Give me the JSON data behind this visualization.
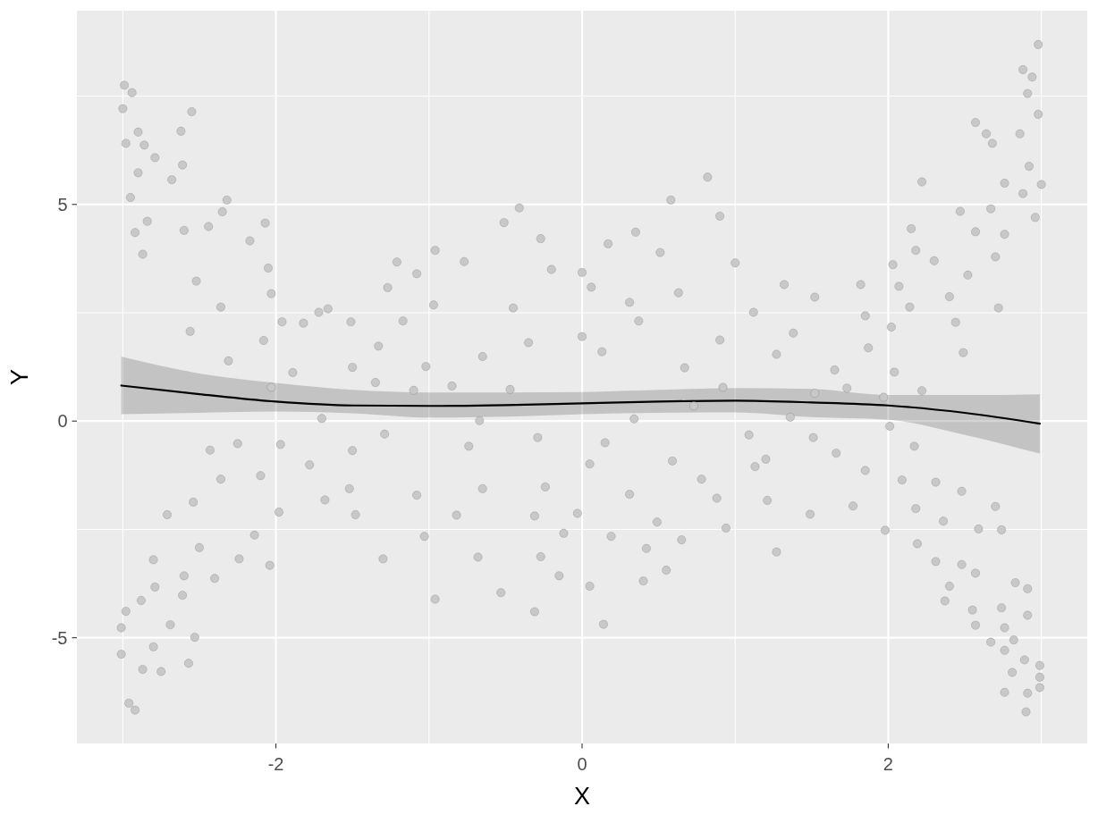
{
  "chart_data": {
    "type": "scatter",
    "xlabel": "X",
    "ylabel": "Y",
    "xlim": [
      -3.3,
      3.3
    ],
    "ylim": [
      -7.44,
      9.47
    ],
    "xticks": [
      {
        "value": -3,
        "label": null
      },
      -2,
      {
        "value": -1,
        "label": null
      },
      0,
      {
        "value": 1,
        "label": null
      },
      2,
      {
        "value": 3,
        "label": null
      }
    ],
    "yticks": [
      -5,
      {
        "value": -2.5,
        "label": null
      },
      0,
      {
        "value": 2.5,
        "label": null
      },
      5,
      {
        "value": 7.5,
        "label": null
      }
    ],
    "grid": true,
    "series": [
      {
        "color": "#c8c8c8",
        "marker": "circle",
        "x": [
          -2.99,
          -2.94,
          -3.0,
          -2.55,
          -2.9,
          -2.62,
          -2.98,
          -2.86,
          -2.79,
          -2.61,
          -2.9,
          -2.68,
          -2.95,
          -2.32,
          -2.84,
          -2.6,
          -2.92,
          -2.87,
          -2.35,
          -2.07,
          -2.44,
          -2.17,
          -2.52,
          -2.05,
          -2.36,
          -2.03,
          -2.56,
          -2.31,
          -2.08,
          -1.82,
          -1.66,
          -1.96,
          -3.01,
          -3.01,
          -2.98,
          -2.87,
          -2.75,
          -2.96,
          -2.92,
          -2.8,
          -2.88,
          -2.79,
          -2.69,
          -2.57,
          -2.53,
          -2.8,
          -2.61,
          -2.6,
          -2.71,
          -2.5,
          -2.4,
          -2.24,
          -2.04,
          -2.54,
          -2.43,
          -2.25,
          -2.36,
          -2.14,
          -2.1,
          -1.97,
          -1.98,
          -1.78,
          -1.68,
          -1.48,
          -1.3,
          -1.72,
          -1.51,
          -1.21,
          -1.08,
          -1.27,
          -1.17,
          -1.33,
          -1.5,
          -1.89,
          -2.03,
          -1.7,
          -1.35,
          -1.1,
          -1.52,
          -1.08,
          -1.29,
          -1.5,
          -0.41,
          -0.51,
          -0.27,
          -0.77,
          -0.96,
          -0.97,
          -0.45,
          -0.2,
          0.0,
          0.06,
          0.17,
          0.35,
          0.58,
          0.82,
          0.9,
          0.51,
          1.0,
          0.31,
          0.63,
          1.12,
          0.37,
          0.0,
          -0.35,
          -0.65,
          -1.02,
          0.13,
          0.67,
          0.9,
          -0.85,
          -0.47,
          0.73,
          0.92,
          -0.96,
          -0.53,
          -0.31,
          0.14,
          -0.15,
          0.05,
          0.4,
          0.55,
          0.42,
          0.65,
          -0.68,
          -0.27,
          -0.12,
          0.19,
          -1.03,
          -0.82,
          -0.65,
          -0.31,
          -0.03,
          0.31,
          0.49,
          0.94,
          0.88,
          0.78,
          1.13,
          1.09,
          0.59,
          0.15,
          0.34,
          0.05,
          -0.29,
          -0.74,
          -0.67,
          -0.24,
          2.98,
          2.88,
          2.94,
          2.91,
          2.98,
          2.57,
          2.64,
          2.86,
          2.68,
          2.92,
          3.0,
          2.88,
          2.76,
          2.22,
          2.47,
          2.67,
          2.96,
          2.57,
          2.76,
          2.7,
          2.52,
          2.72,
          2.15,
          2.18,
          2.3,
          2.03,
          2.07,
          2.4,
          2.14,
          2.44,
          2.49,
          2.02,
          2.04,
          1.32,
          1.52,
          1.82,
          1.85,
          1.38,
          1.27,
          1.87,
          1.65,
          1.52,
          1.73,
          1.97,
          1.36,
          2.22,
          1.21,
          1.49,
          1.27,
          1.77,
          1.98,
          1.85,
          1.2,
          1.66,
          1.51,
          2.01,
          2.17,
          2.09,
          2.31,
          2.48,
          2.18,
          2.7,
          2.36,
          2.59,
          2.74,
          2.19,
          2.31,
          2.48,
          2.57,
          2.4,
          2.37,
          2.83,
          2.91,
          2.55,
          2.57,
          2.74,
          2.91,
          2.76,
          2.82,
          2.67,
          2.76,
          2.89,
          2.99,
          2.81,
          2.99,
          2.99,
          2.76,
          2.91,
          2.9
        ],
        "values": [
          7.75,
          7.58,
          7.21,
          7.14,
          6.67,
          6.69,
          6.41,
          6.37,
          6.08,
          5.91,
          5.73,
          5.57,
          5.16,
          5.1,
          4.61,
          4.4,
          4.35,
          3.85,
          4.83,
          4.57,
          4.49,
          4.16,
          3.23,
          3.53,
          2.63,
          2.94,
          2.07,
          1.39,
          1.86,
          2.26,
          2.59,
          2.29,
          -4.77,
          -5.38,
          -4.39,
          -5.73,
          -5.78,
          -6.51,
          -6.67,
          -5.21,
          -4.14,
          -3.83,
          -4.7,
          -5.59,
          -4.99,
          -3.2,
          -4.02,
          -3.57,
          -2.16,
          -2.92,
          -3.63,
          -3.18,
          -3.33,
          -1.87,
          -0.67,
          -0.52,
          -1.34,
          -2.63,
          -1.26,
          -0.54,
          -2.1,
          -1.01,
          -1.82,
          -2.16,
          -3.18,
          2.51,
          2.29,
          3.67,
          3.4,
          3.08,
          2.31,
          1.73,
          1.24,
          1.12,
          0.78,
          0.06,
          0.89,
          0.71,
          -1.56,
          -1.71,
          -0.3,
          -0.68,
          4.92,
          4.58,
          4.21,
          3.68,
          3.94,
          2.68,
          2.61,
          3.5,
          3.43,
          3.09,
          4.09,
          4.36,
          5.1,
          5.63,
          4.73,
          3.89,
          3.65,
          2.74,
          2.96,
          2.51,
          2.31,
          1.95,
          1.81,
          1.49,
          1.26,
          1.6,
          1.23,
          1.87,
          0.81,
          0.73,
          0.35,
          0.78,
          -4.11,
          -3.96,
          -4.4,
          -4.69,
          -3.57,
          -3.81,
          -3.69,
          -3.44,
          -2.94,
          -2.74,
          -3.14,
          -3.13,
          -2.59,
          -2.66,
          -2.66,
          -2.17,
          -1.56,
          -2.19,
          -2.13,
          -1.69,
          -2.33,
          -2.47,
          -1.78,
          -1.34,
          -1.05,
          -0.32,
          -0.92,
          -0.5,
          0.05,
          -0.99,
          -0.38,
          -0.58,
          0.01,
          -1.52,
          8.69,
          8.11,
          7.94,
          7.56,
          7.08,
          6.89,
          6.63,
          6.63,
          6.41,
          5.88,
          5.46,
          5.25,
          5.49,
          5.52,
          4.84,
          4.9,
          4.7,
          4.37,
          4.31,
          3.79,
          3.37,
          2.61,
          4.44,
          3.94,
          3.7,
          3.61,
          3.11,
          2.87,
          2.63,
          2.28,
          1.58,
          2.17,
          1.13,
          3.15,
          2.86,
          3.15,
          2.43,
          2.03,
          1.54,
          1.69,
          1.18,
          0.64,
          0.76,
          0.55,
          0.09,
          0.7,
          -1.83,
          -2.15,
          -3.02,
          -1.96,
          -2.52,
          -1.14,
          -0.88,
          -0.74,
          -0.38,
          -0.12,
          -0.58,
          -1.36,
          -1.41,
          -1.62,
          -2.02,
          -1.97,
          -2.31,
          -2.49,
          -2.51,
          -2.83,
          -3.24,
          -3.31,
          -3.51,
          -3.81,
          -4.15,
          -3.73,
          -3.87,
          -4.36,
          -4.71,
          -4.31,
          -4.48,
          -4.77,
          -5.05,
          -5.1,
          -5.29,
          -5.51,
          -5.64,
          -5.8,
          -5.91,
          -6.15,
          -6.26,
          -6.28,
          -6.71
        ]
      },
      {
        "type": "line",
        "color": "#000000",
        "x": [
          -3.01,
          -2.5,
          -2,
          -1.5,
          -1,
          -0.5,
          0,
          0.5,
          1,
          1.5,
          2,
          2.5,
          2.99
        ],
        "values": [
          0.82,
          0.62,
          0.45,
          0.36,
          0.35,
          0.37,
          0.41,
          0.45,
          0.47,
          0.43,
          0.36,
          0.19,
          -0.06
        ],
        "lower": [
          0.16,
          0.19,
          0.22,
          0.18,
          0.08,
          0.1,
          0.16,
          0.19,
          0.2,
          0.09,
          0.03,
          -0.32,
          -0.75
        ],
        "upper": [
          1.49,
          1.1,
          0.88,
          0.72,
          0.66,
          0.66,
          0.67,
          0.72,
          0.76,
          0.74,
          0.6,
          0.6,
          0.62
        ]
      }
    ]
  }
}
